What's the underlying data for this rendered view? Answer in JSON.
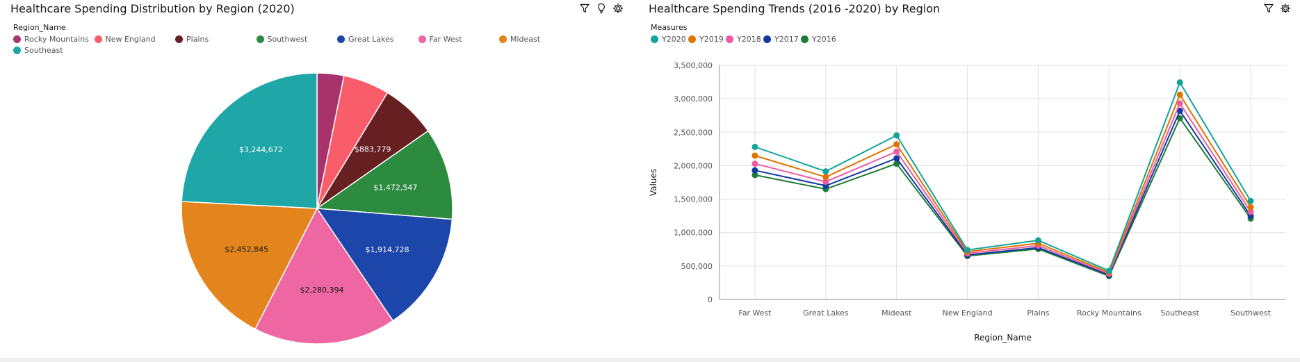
{
  "toolbar": {
    "left_icons": [
      "filter-icon",
      "lightbulb-icon",
      "settings-icon"
    ],
    "right_icons": [
      "filter-icon",
      "settings-icon"
    ]
  },
  "colors": {
    "Rocky Mountains": "#a8326b",
    "New England": "#fa5d6a",
    "Plains": "#671f22",
    "Southwest": "#2d8b40",
    "Great Lakes": "#1c46a9",
    "Far West": "#ee66a2",
    "Mideast": "#e3851c",
    "Southeast": "#1fa6a6",
    "Y2020": "#12a39c",
    "Y2019": "#e07300",
    "Y2018": "#ec5aa3",
    "Y2017": "#1238a3",
    "Y2016": "#1d7c35"
  },
  "chart_data": [
    {
      "type": "pie",
      "title": "Healthcare Spending Distribution by Region (2020)",
      "legend_title": "Region_Name",
      "legend_position": "top",
      "categories": [
        "Rocky Mountains",
        "New England",
        "Plains",
        "Southwest",
        "Great Lakes",
        "Far West",
        "Mideast",
        "Southeast"
      ],
      "values": [
        429000,
        740000,
        883779,
        1472547,
        1914728,
        2280394,
        2452845,
        3244672
      ],
      "data_labels": [
        "",
        "",
        "$883,779",
        "$1,472,547",
        "$1,914,728",
        "$2,280,394",
        "$2,452,845",
        "$3,244,672"
      ]
    },
    {
      "type": "line",
      "title": "Healthcare Spending Trends (2016 -2020) by Region",
      "legend_title": "Measures",
      "legend_position": "top",
      "xlabel": "Region_Name",
      "ylabel": "Values",
      "ylim": [
        0,
        3500000
      ],
      "yticks": [
        0,
        500000,
        1000000,
        1500000,
        2000000,
        2500000,
        3000000,
        3500000
      ],
      "ytick_labels": [
        "0",
        "500,000",
        "1,000,000",
        "1,500,000",
        "2,000,000",
        "2,500,000",
        "3,000,000",
        "3,500,000"
      ],
      "grid": true,
      "categories": [
        "Far West",
        "Great Lakes",
        "Mideast",
        "New England",
        "Plains",
        "Rocky Mountains",
        "Southeast",
        "Southwest"
      ],
      "series": [
        {
          "name": "Y2020",
          "values": [
            2280394,
            1914728,
            2452845,
            740000,
            883779,
            429000,
            3244672,
            1472547
          ]
        },
        {
          "name": "Y2019",
          "values": [
            2150000,
            1830000,
            2320000,
            715000,
            840000,
            405000,
            3060000,
            1380000
          ]
        },
        {
          "name": "Y2018",
          "values": [
            2030000,
            1760000,
            2210000,
            690000,
            805000,
            385000,
            2930000,
            1310000
          ]
        },
        {
          "name": "Y2017",
          "values": [
            1930000,
            1700000,
            2110000,
            665000,
            775000,
            365000,
            2820000,
            1250000
          ]
        },
        {
          "name": "Y2016",
          "values": [
            1860000,
            1650000,
            2030000,
            650000,
            755000,
            350000,
            2710000,
            1210000
          ]
        }
      ]
    }
  ]
}
